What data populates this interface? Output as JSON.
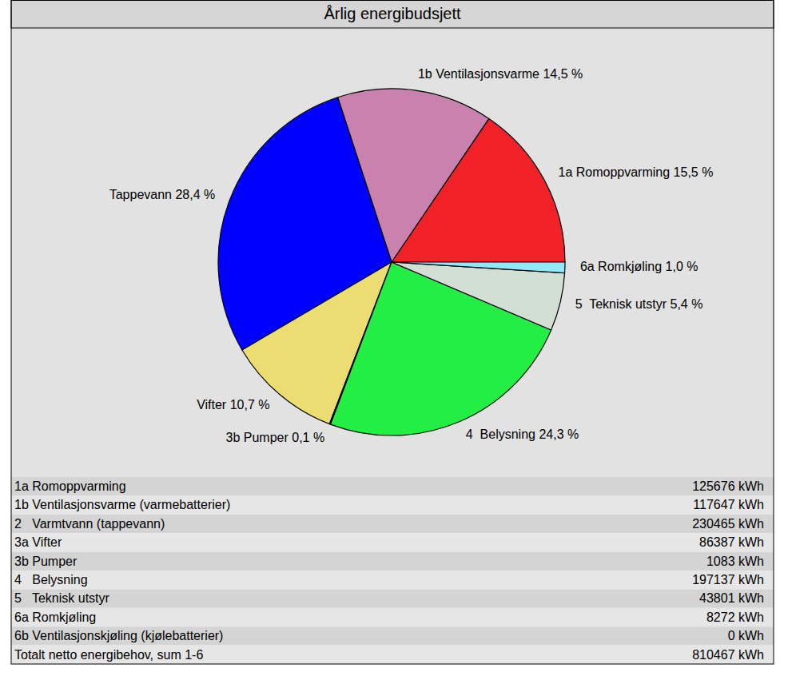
{
  "chart_data": {
    "type": "pie",
    "title": "Årlig energibudsjett",
    "categories": [
      "1a Romoppvarming",
      "1b Ventilasjonsvarme",
      "Tappevann",
      "Vifter",
      "3b Pumper",
      "4  Belysning",
      "5  Teknisk utstyr",
      "6a Romkjøling"
    ],
    "values": [
      15.5,
      14.5,
      28.4,
      10.7,
      0.1,
      24.3,
      5.4,
      1.0
    ],
    "value_labels": [
      "15,5 %",
      "14,5 %",
      "28,4 %",
      "10,7 %",
      "0,1 %",
      "24,3 %",
      "5,4 %",
      "1,0 %"
    ],
    "colors": [
      "#f22027",
      "#c882ad",
      "#0000ff",
      "#ebdd72",
      "#2b2b2b",
      "#22ee44",
      "#d2dfd4",
      "#90e8f8"
    ],
    "data_labels": true
  },
  "table": {
    "rows": [
      [
        "1a Romoppvarming",
        "125676 kWh"
      ],
      [
        "1b Ventilasjonsvarme (varmebatterier)",
        "117647 kWh"
      ],
      [
        "2   Varmtvann (tappevann)",
        "230465 kWh"
      ],
      [
        "3a Vifter",
        "86387 kWh"
      ],
      [
        "3b Pumper",
        "1083 kWh"
      ],
      [
        "4   Belysning",
        "197137 kWh"
      ],
      [
        "5   Teknisk utstyr",
        "43801 kWh"
      ],
      [
        "6a Romkjøling",
        "8272 kWh"
      ],
      [
        "6b Ventilasjonskjøling (kjølebatterier)",
        "0 kWh"
      ],
      [
        "Totalt netto energibehov, sum 1-6",
        "810467 kWh"
      ]
    ]
  }
}
